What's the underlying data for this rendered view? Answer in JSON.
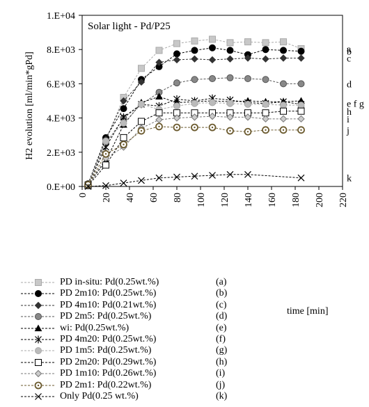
{
  "chart_data": {
    "type": "line",
    "title": "Solar light - Pd/P25",
    "xlabel": "time [min]",
    "ylabel": "H2 evolution  [ml/min*gPd]",
    "xlim": [
      0,
      220
    ],
    "ylim": [
      0,
      10000
    ],
    "xticks": [
      0,
      20,
      40,
      60,
      80,
      100,
      120,
      140,
      160,
      180,
      200,
      220
    ],
    "yticks": [
      0,
      2000,
      4000,
      6000,
      8000,
      10000
    ],
    "ytick_labels": [
      "0.E+00",
      "2.E+03",
      "4.E+03",
      "6.E+03",
      "8.E+03",
      "1.E+04"
    ],
    "grid": false,
    "legend_position": "bottom",
    "series": [
      {
        "name": "PD in-situ: Pd(0.25wt.%)",
        "letter": "(a)",
        "end_label": "a",
        "marker": "square",
        "color": "#aaaaaa",
        "fill": "#c8c8c8",
        "x": [
          5,
          20,
          35,
          50,
          65,
          80,
          95,
          110,
          125,
          140,
          155,
          170,
          185
        ],
        "y": [
          100,
          2700,
          5200,
          6900,
          7950,
          8350,
          8500,
          8600,
          8400,
          8450,
          8400,
          8450,
          8050
        ]
      },
      {
        "name": "PD 2m10: Pd(0.25wt.%)",
        "letter": "(b)",
        "end_label": "b",
        "marker": "circle",
        "color": "#000000",
        "fill": "#000000",
        "x": [
          5,
          20,
          35,
          50,
          65,
          80,
          95,
          110,
          125,
          140,
          155,
          170,
          185
        ],
        "y": [
          150,
          2850,
          4550,
          6250,
          7000,
          7750,
          7950,
          8100,
          7950,
          7700,
          8000,
          7950,
          7900
        ]
      },
      {
        "name": "PD 4m10: Pd(0.21wt.%)",
        "letter": "(c)",
        "end_label": "c",
        "marker": "diamond",
        "color": "#333333",
        "fill": "#333333",
        "x": [
          5,
          20,
          35,
          50,
          65,
          80,
          95,
          110,
          125,
          140,
          155,
          170,
          185
        ],
        "y": [
          100,
          2750,
          5000,
          6100,
          7250,
          7400,
          7450,
          7400,
          7450,
          7500,
          7450,
          7500,
          7500
        ]
      },
      {
        "name": "PD 2m5: Pd(0.25wt.%)",
        "letter": "(d)",
        "end_label": "d",
        "marker": "circle",
        "color": "#555555",
        "fill": "#888888",
        "x": [
          5,
          20,
          35,
          50,
          65,
          80,
          95,
          110,
          125,
          140,
          155,
          170,
          185
        ],
        "y": [
          100,
          2500,
          4000,
          4800,
          5500,
          6050,
          6250,
          6300,
          6350,
          6300,
          6250,
          6000,
          6000
        ]
      },
      {
        "name": "wi: Pd(0.25wt.%)",
        "letter": "(e)",
        "end_label": "e",
        "marker": "triangle",
        "color": "#000000",
        "fill": "#000000",
        "x": [
          5,
          20,
          35,
          50,
          65,
          80,
          95,
          110,
          125,
          140,
          155,
          170,
          185
        ],
        "y": [
          100,
          1500,
          3600,
          4900,
          5250,
          4900,
          4950,
          5000,
          4950,
          5000,
          4950,
          4950,
          5000
        ]
      },
      {
        "name": "PD 4m20: Pd(0.25wt.%)",
        "letter": "(f)",
        "end_label": "f",
        "marker": "star",
        "color": "#000000",
        "fill": "none",
        "x": [
          5,
          20,
          35,
          50,
          65,
          80,
          95,
          110,
          125,
          140,
          155,
          170,
          185
        ],
        "y": [
          100,
          2300,
          4050,
          4800,
          4700,
          5100,
          5000,
          5150,
          5050,
          4900,
          4850,
          4950,
          4800
        ]
      },
      {
        "name": "PD 1m5: Pd(0.25wt.%)",
        "letter": "(g)",
        "end_label": "g",
        "marker": "circle",
        "color": "#aaaaaa",
        "fill": "#bbbbbb",
        "x": [
          5,
          20,
          35,
          50,
          65,
          80,
          95,
          110,
          125,
          140,
          155,
          170,
          185
        ],
        "y": [
          100,
          2650,
          3700,
          4800,
          4500,
          4700,
          4850,
          4900,
          4850,
          4800,
          4800,
          4750,
          4750
        ]
      },
      {
        "name": "PD 2m20: Pd(0.29wt.%)",
        "letter": "(h)",
        "end_label": "h",
        "marker": "square",
        "color": "#000000",
        "fill": "#ffffff",
        "x": [
          5,
          20,
          35,
          50,
          65,
          80,
          95,
          110,
          125,
          140,
          155,
          170,
          185
        ],
        "y": [
          50,
          1250,
          2850,
          3800,
          4300,
          4300,
          4300,
          4300,
          4300,
          4300,
          4300,
          4400,
          4400
        ]
      },
      {
        "name": "PD 1m10: Pd(0.26wt.%)",
        "letter": "(i)",
        "end_label": "i",
        "marker": "diamond",
        "color": "#777777",
        "fill": "#cccccc",
        "x": [
          5,
          20,
          35,
          50,
          65,
          80,
          95,
          110,
          125,
          140,
          155,
          170,
          185
        ],
        "y": [
          100,
          1650,
          2300,
          3400,
          3900,
          4000,
          4050,
          4100,
          4050,
          4050,
          3950,
          3950,
          3950
        ]
      },
      {
        "name": "PD 2m1: Pd(0.22wt.%)",
        "letter": "(j)",
        "end_label": "j",
        "marker": "circle-dot",
        "color": "#6b5a2e",
        "fill": "#ffffff",
        "x": [
          5,
          20,
          35,
          50,
          65,
          80,
          95,
          110,
          125,
          140,
          155,
          170,
          185
        ],
        "y": [
          100,
          1900,
          2450,
          3250,
          3500,
          3450,
          3450,
          3450,
          3250,
          3200,
          3300,
          3300,
          3300
        ]
      },
      {
        "name": "Only Pd(0.25 wt.%)",
        "letter": "(k)",
        "end_label": "k",
        "marker": "x",
        "color": "#000000",
        "fill": "none",
        "x": [
          5,
          20,
          35,
          50,
          65,
          80,
          95,
          110,
          125,
          140,
          185
        ],
        "y": [
          0,
          50,
          200,
          350,
          500,
          550,
          600,
          650,
          700,
          700,
          500
        ]
      }
    ],
    "end_label_groups": [
      {
        "text": "a",
        "series": [
          0
        ]
      },
      {
        "text": "b",
        "series": [
          1
        ]
      },
      {
        "text": "c",
        "series": [
          2
        ]
      },
      {
        "text": "d",
        "series": [
          3
        ]
      },
      {
        "text": "e f g",
        "series": [
          4,
          5,
          6
        ]
      },
      {
        "text": "h",
        "series": [
          7
        ]
      },
      {
        "text": "i",
        "series": [
          8
        ]
      },
      {
        "text": "j",
        "series": [
          9
        ]
      },
      {
        "text": "k",
        "series": [
          10
        ]
      }
    ]
  }
}
